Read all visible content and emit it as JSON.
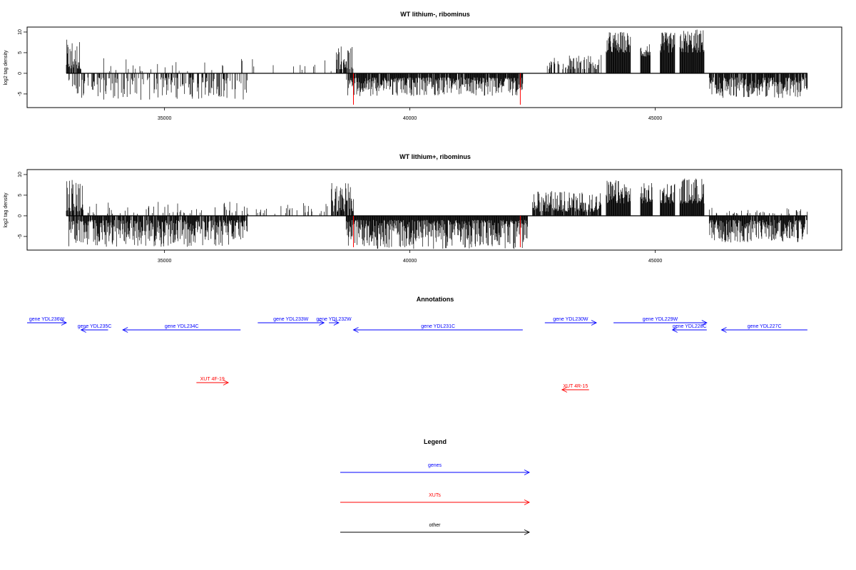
{
  "chart_data": [
    {
      "type": "bar",
      "title": "WT lithium-, ribominus",
      "ylabel": "log2 tag density",
      "xlabel": "",
      "xlim": [
        32200,
        48800
      ],
      "ylim": [
        -8.3,
        11.2
      ],
      "xticks": [
        35000,
        40000,
        45000
      ],
      "yticks": [
        -5,
        0,
        5,
        10
      ],
      "xrange_data": [
        33000,
        48100
      ],
      "features": [
        {
          "from": 33000,
          "to": 33300,
          "sign": 1,
          "min": 1,
          "max": 8.2,
          "density": 0.85
        },
        {
          "from": 33050,
          "to": 36700,
          "sign": -1,
          "min": 1,
          "max": 6.5,
          "density": 0.42
        },
        {
          "from": 33300,
          "to": 38400,
          "sign": 1,
          "min": 0.5,
          "max": 3.8,
          "density": 0.05
        },
        {
          "from": 38500,
          "to": 38850,
          "sign": 1,
          "min": 1,
          "max": 7.0,
          "density": 0.75
        },
        {
          "from": 38700,
          "to": 42300,
          "sign": -1,
          "min": 1,
          "max": 5.5,
          "density": 0.9
        },
        {
          "from": 42800,
          "to": 43900,
          "sign": 1,
          "min": 1,
          "max": 4.5,
          "density": 0.5
        },
        {
          "from": 44000,
          "to": 44500,
          "sign": 1,
          "min": 5,
          "max": 10.2,
          "density": 1.0
        },
        {
          "from": 44700,
          "to": 44900,
          "sign": 1,
          "min": 4,
          "max": 7.5,
          "density": 1.0
        },
        {
          "from": 45100,
          "to": 45400,
          "sign": 1,
          "min": 5,
          "max": 10.0,
          "density": 1.0
        },
        {
          "from": 45500,
          "to": 46000,
          "sign": 1,
          "min": 5,
          "max": 10.8,
          "density": 1.0
        },
        {
          "from": 46100,
          "to": 48100,
          "sign": -1,
          "min": 1,
          "max": 6.0,
          "density": 0.9
        }
      ],
      "red_spikes": [
        {
          "x": 38850,
          "y": -7.6
        },
        {
          "x": 42250,
          "y": -7.6
        }
      ]
    },
    {
      "type": "bar",
      "title": "WT lithium+, ribominus",
      "ylabel": "log2 tag density",
      "xlabel": "",
      "xlim": [
        32200,
        48800
      ],
      "ylim": [
        -8.3,
        11.2
      ],
      "xticks": [
        35000,
        40000,
        45000
      ],
      "yticks": [
        -5,
        0,
        5,
        10
      ],
      "xrange_data": [
        33000,
        48100
      ],
      "features": [
        {
          "from": 33000,
          "to": 33350,
          "sign": 1,
          "min": 1,
          "max": 9.5,
          "density": 0.9
        },
        {
          "from": 33050,
          "to": 36700,
          "sign": -1,
          "min": 1,
          "max": 7.5,
          "density": 0.9
        },
        {
          "from": 33350,
          "to": 38400,
          "sign": 1,
          "min": 0.5,
          "max": 3.5,
          "density": 0.12
        },
        {
          "from": 38400,
          "to": 38850,
          "sign": 1,
          "min": 1,
          "max": 8.5,
          "density": 0.85
        },
        {
          "from": 38700,
          "to": 42400,
          "sign": -1,
          "min": 1,
          "max": 8.0,
          "density": 1.0
        },
        {
          "from": 42500,
          "to": 43900,
          "sign": 1,
          "min": 1,
          "max": 6.0,
          "density": 0.85
        },
        {
          "from": 44000,
          "to": 44500,
          "sign": 1,
          "min": 3,
          "max": 8.7,
          "density": 1.0
        },
        {
          "from": 44700,
          "to": 44950,
          "sign": 1,
          "min": 3,
          "max": 8.0,
          "density": 1.0
        },
        {
          "from": 45100,
          "to": 45400,
          "sign": 1,
          "min": 3,
          "max": 8.5,
          "density": 1.0
        },
        {
          "from": 45500,
          "to": 46000,
          "sign": 1,
          "min": 3,
          "max": 9.3,
          "density": 1.0
        },
        {
          "from": 46100,
          "to": 48100,
          "sign": -1,
          "min": 1,
          "max": 6.5,
          "density": 0.95
        },
        {
          "from": 46100,
          "to": 48100,
          "sign": 1,
          "min": 0.5,
          "max": 2.0,
          "density": 0.1
        }
      ],
      "red_spikes": [
        {
          "x": 38850,
          "y": -7.6
        },
        {
          "x": 42250,
          "y": -7.6
        }
      ]
    },
    {
      "type": "annotation-track",
      "title": "Annotations",
      "features": [
        {
          "label": "gene YDL236W",
          "from": 32200,
          "to": 33000,
          "strand": "+",
          "kind": "gene",
          "row": 0
        },
        {
          "label": "gene YDL235C",
          "from": 33300,
          "to": 33850,
          "strand": "-",
          "kind": "gene",
          "row": 1
        },
        {
          "label": "gene YDL234C",
          "from": 34150,
          "to": 36550,
          "strand": "-",
          "kind": "gene",
          "row": 1
        },
        {
          "label": "gene YDL233W",
          "from": 36900,
          "to": 38250,
          "strand": "+",
          "kind": "gene",
          "row": 0
        },
        {
          "label": "gene YDL232W",
          "from": 38350,
          "to": 38550,
          "strand": "+",
          "kind": "gene",
          "row": 0
        },
        {
          "label": "gene YDL231C",
          "from": 38850,
          "to": 42300,
          "strand": "-",
          "kind": "gene",
          "row": 1
        },
        {
          "label": "gene YDL230W",
          "from": 42750,
          "to": 43800,
          "strand": "+",
          "kind": "gene",
          "row": 0
        },
        {
          "label": "gene YDL229W",
          "from": 44150,
          "to": 46050,
          "strand": "+",
          "kind": "gene",
          "row": 0
        },
        {
          "label": "gene YDL228C",
          "from": 45350,
          "to": 46050,
          "strand": "-",
          "kind": "gene",
          "row": 1
        },
        {
          "label": "gene YDL227C",
          "from": 46350,
          "to": 48100,
          "strand": "-",
          "kind": "gene",
          "row": 1
        },
        {
          "label": "XUT 4F-19",
          "from": 35650,
          "to": 36300,
          "strand": "+",
          "kind": "xut",
          "row": 2
        },
        {
          "label": "XUT 4R-15",
          "from": 43100,
          "to": 43650,
          "strand": "-",
          "kind": "xut",
          "row": 3
        }
      ]
    },
    {
      "type": "legend",
      "title": "Legend",
      "entries": [
        {
          "label": "genes",
          "color": "#0000ff"
        },
        {
          "label": "XUTs",
          "color": "#ff0000"
        },
        {
          "label": "other",
          "color": "#000000"
        }
      ]
    }
  ],
  "colors": {
    "bar": "#000000",
    "spike": "#ff0000",
    "gene": "#0000ff",
    "xut": "#ff0000",
    "other": "#000000"
  }
}
